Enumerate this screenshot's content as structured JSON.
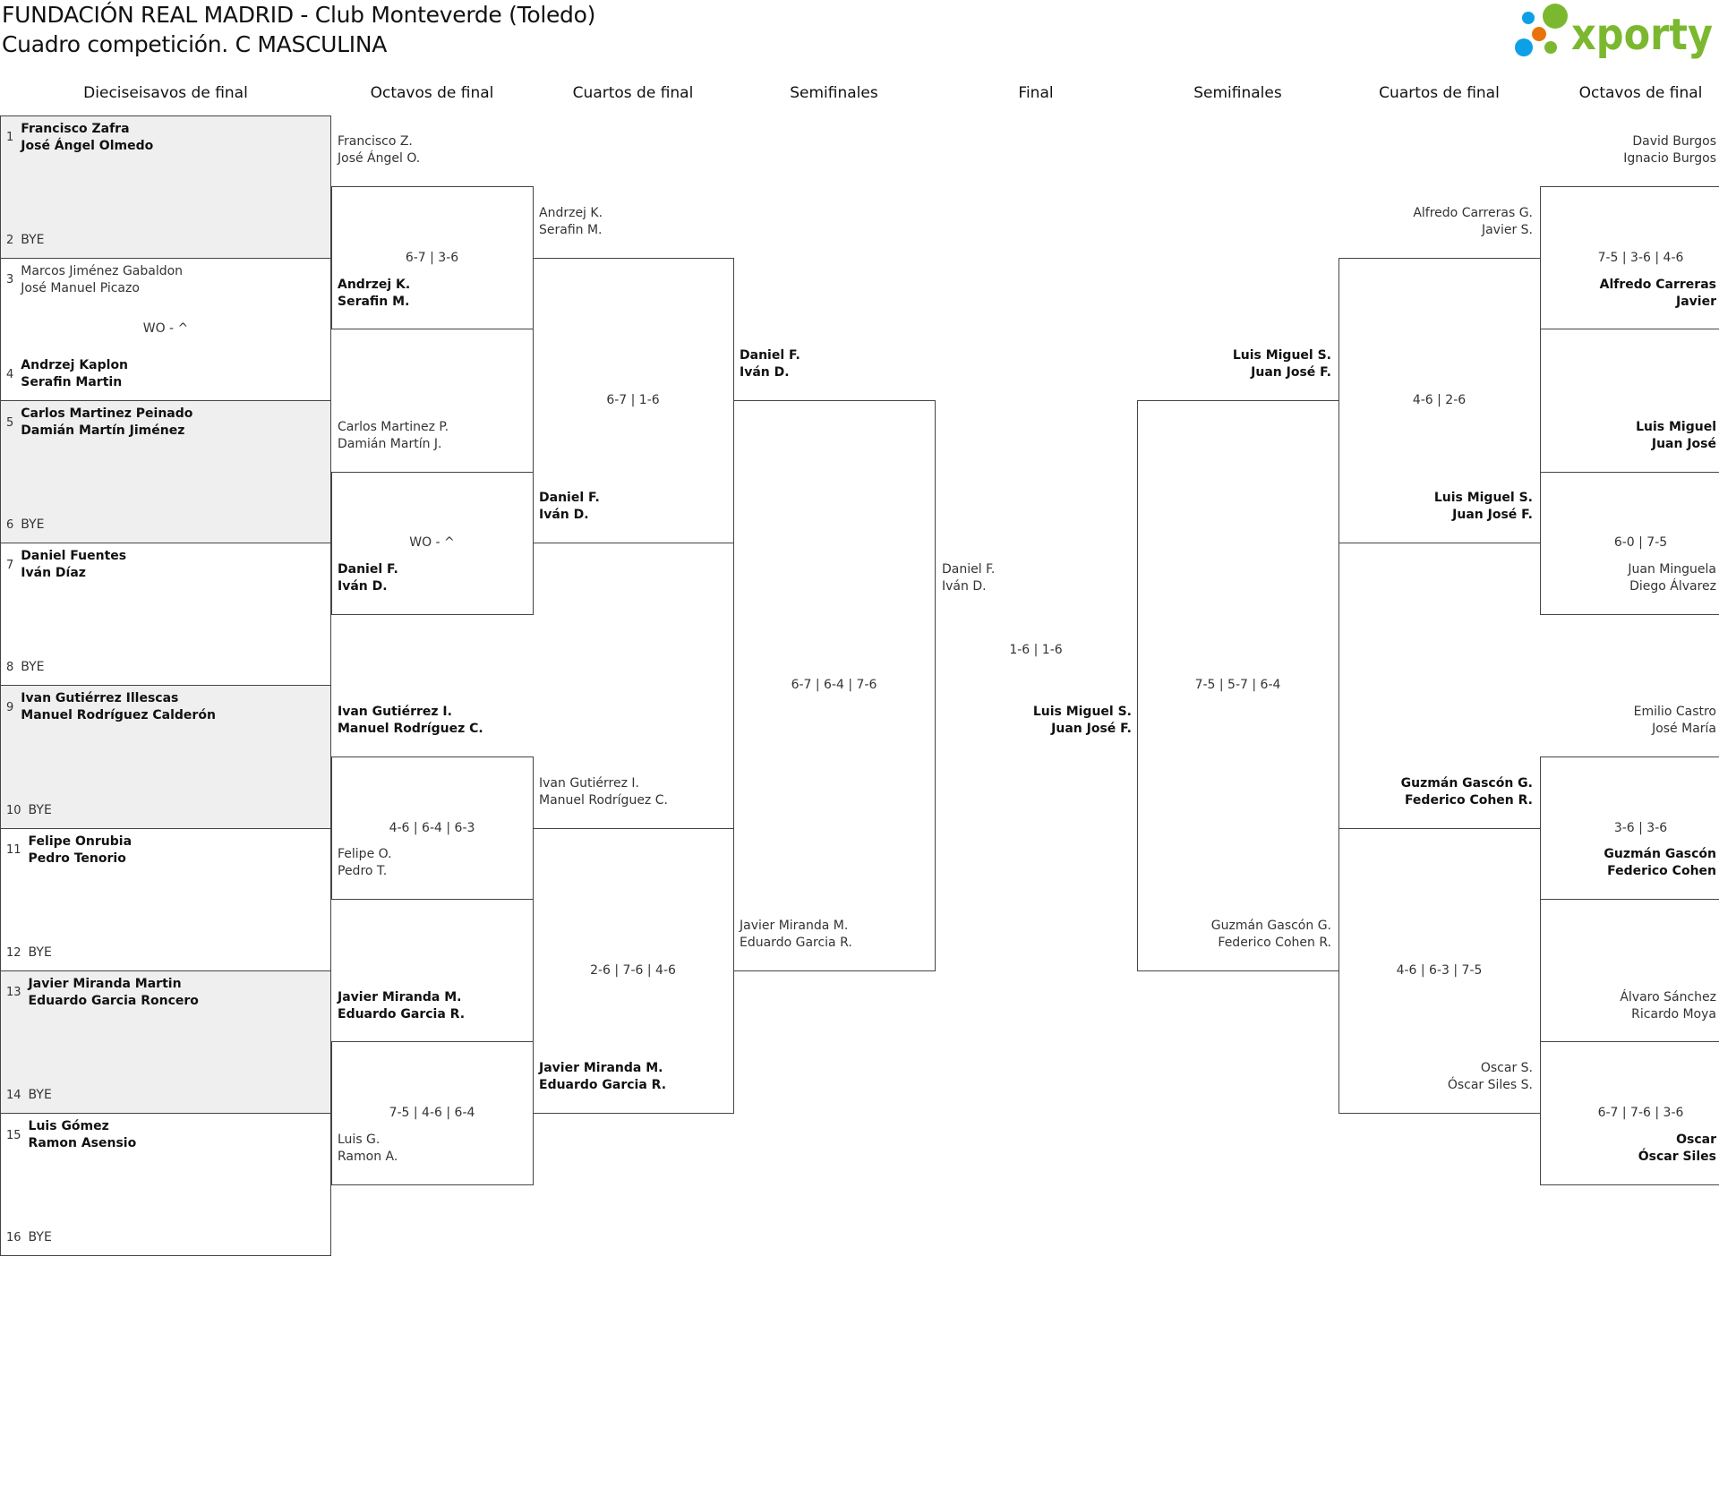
{
  "header": {
    "title_line1": "FUNDACIÓN REAL MADRID - Club Monteverde (Toledo)",
    "title_line2": "Cuadro competición. C MASCULINA",
    "logo_text": "xporty",
    "logo_colors": {
      "green": "#7cb82f",
      "blue": "#0ea0e6",
      "orange": "#e8730c"
    }
  },
  "round_headers": [
    "Dieciseisavos de final",
    "Octavos de final",
    "Cuartos de final",
    "Semifinales",
    "Final",
    "Semifinales",
    "Cuartos de final",
    "Octavos de final"
  ],
  "first_round": [
    {
      "score": "",
      "seeds": [
        {
          "num": "1",
          "lines": [
            "Francisco Zafra",
            "José Ángel Olmedo"
          ],
          "winner": true
        },
        {
          "num": "2",
          "lines": [
            "BYE"
          ],
          "winner": false
        }
      ]
    },
    {
      "score": "WO - ^",
      "seeds": [
        {
          "num": "3",
          "lines": [
            "Marcos Jiménez Gabaldon",
            "José Manuel Picazo"
          ],
          "winner": false
        },
        {
          "num": "4",
          "lines": [
            "Andrzej Kaplon",
            "Serafin Martin"
          ],
          "winner": true
        }
      ]
    },
    {
      "score": "",
      "seeds": [
        {
          "num": "5",
          "lines": [
            "Carlos Martinez Peinado",
            "Damián Martín Jiménez"
          ],
          "winner": true
        },
        {
          "num": "6",
          "lines": [
            "BYE"
          ],
          "winner": false
        }
      ]
    },
    {
      "score": "",
      "seeds": [
        {
          "num": "7",
          "lines": [
            "Daniel Fuentes",
            "Iván Díaz"
          ],
          "winner": true
        },
        {
          "num": "8",
          "lines": [
            "BYE"
          ],
          "winner": false
        }
      ]
    },
    {
      "score": "",
      "seeds": [
        {
          "num": "9",
          "lines": [
            "Ivan Gutiérrez Illescas",
            "Manuel Rodríguez Calderón"
          ],
          "winner": true
        },
        {
          "num": "10",
          "lines": [
            "BYE"
          ],
          "winner": false
        }
      ]
    },
    {
      "score": "",
      "seeds": [
        {
          "num": "11",
          "lines": [
            "Felipe Onrubia",
            "Pedro Tenorio"
          ],
          "winner": true
        },
        {
          "num": "12",
          "lines": [
            "BYE"
          ],
          "winner": false
        }
      ]
    },
    {
      "score": "",
      "seeds": [
        {
          "num": "13",
          "lines": [
            "Javier Miranda Martin",
            "Eduardo Garcia Roncero"
          ],
          "winner": true
        },
        {
          "num": "14",
          "lines": [
            "BYE"
          ],
          "winner": false
        }
      ]
    },
    {
      "score": "",
      "seeds": [
        {
          "num": "15",
          "lines": [
            "Luis Gómez",
            "Ramon Asensio"
          ],
          "winner": true
        },
        {
          "num": "16",
          "lines": [
            "BYE"
          ],
          "winner": false
        }
      ]
    }
  ],
  "left_rounds": [
    {
      "entries": [
        {
          "lines": [
            "Francisco Z.",
            "José Ángel O."
          ],
          "winner": false
        },
        {
          "lines": [
            "Andrzej K.",
            "Serafin M."
          ],
          "winner": true
        },
        {
          "lines": [
            "Carlos Martinez P.",
            "Damián Martín J."
          ],
          "winner": false
        },
        {
          "lines": [
            "Daniel F.",
            "Iván D."
          ],
          "winner": true
        },
        {
          "lines": [
            "Ivan Gutiérrez I.",
            "Manuel Rodríguez C."
          ],
          "winner": true
        },
        {
          "lines": [
            "Felipe O.",
            "Pedro T."
          ],
          "winner": false
        },
        {
          "lines": [
            "Javier Miranda M.",
            "Eduardo Garcia R."
          ],
          "winner": true
        },
        {
          "lines": [
            "Luis G.",
            "Ramon A."
          ],
          "winner": false
        }
      ],
      "scores": [
        "6-7 | 3-6",
        "WO - ^",
        "4-6 | 6-4 | 6-3",
        "7-5 | 4-6 | 6-4"
      ]
    },
    {
      "entries": [
        {
          "lines": [
            "Andrzej K.",
            "Serafin M."
          ],
          "winner": false
        },
        {
          "lines": [
            "Daniel F.",
            "Iván D."
          ],
          "winner": true
        },
        {
          "lines": [
            "Ivan Gutiérrez I.",
            "Manuel Rodríguez C."
          ],
          "winner": false
        },
        {
          "lines": [
            "Javier Miranda M.",
            "Eduardo Garcia R."
          ],
          "winner": true
        }
      ],
      "scores": [
        "6-7 | 1-6",
        "2-6 | 7-6 | 4-6"
      ]
    },
    {
      "entries": [
        {
          "lines": [
            "Daniel F.",
            "Iván D."
          ],
          "winner": true
        },
        {
          "lines": [
            "Javier Miranda M.",
            "Eduardo Garcia R."
          ],
          "winner": false
        }
      ],
      "scores": [
        "6-7 | 6-4 | 7-6"
      ]
    }
  ],
  "final": {
    "entries": [
      {
        "lines": [
          "Daniel F.",
          "Iván D."
        ],
        "winner": false
      },
      {
        "lines": [
          "Luis Miguel S.",
          "Juan José F."
        ],
        "winner": true
      }
    ],
    "score": "1-6 | 1-6"
  },
  "right_rounds": [
    {
      "entries": [
        {
          "lines": [
            "Luis Miguel S.",
            "Juan José F."
          ],
          "winner": true
        },
        {
          "lines": [
            "Guzmán Gascón G.",
            "Federico Cohen R."
          ],
          "winner": false
        }
      ],
      "scores": [
        "7-5 | 5-7 | 6-4"
      ]
    },
    {
      "entries": [
        {
          "lines": [
            "Alfredo Carreras G.",
            "Javier S."
          ],
          "winner": false
        },
        {
          "lines": [
            "Luis Miguel S.",
            "Juan José F."
          ],
          "winner": true
        },
        {
          "lines": [
            "Guzmán Gascón G.",
            "Federico Cohen R."
          ],
          "winner": true
        },
        {
          "lines": [
            "Oscar S.",
            "Óscar Siles S."
          ],
          "winner": false
        }
      ],
      "scores": [
        "4-6 | 2-6",
        "4-6 | 6-3 | 7-5"
      ]
    },
    {
      "entries": [
        {
          "lines": [
            "David Burgos",
            "Ignacio Burgos"
          ],
          "winner": false
        },
        {
          "lines": [
            "Alfredo Carreras",
            "Javier"
          ],
          "winner": true
        },
        {
          "lines": [
            "Luis Miguel",
            "Juan José"
          ],
          "winner": true
        },
        {
          "lines": [
            "Juan Minguela",
            "Diego Álvarez"
          ],
          "winner": false
        },
        {
          "lines": [
            "Emilio Castro",
            "José María"
          ],
          "winner": false
        },
        {
          "lines": [
            "Guzmán Gascón",
            "Federico Cohen"
          ],
          "winner": true
        },
        {
          "lines": [
            "Álvaro Sánchez",
            "Ricardo Moya"
          ],
          "winner": false
        },
        {
          "lines": [
            "Oscar",
            "Óscar Siles"
          ],
          "winner": true
        }
      ],
      "scores": [
        "7-5 | 3-6 | 4-6",
        "6-0 | 7-5",
        "3-6 | 3-6",
        "6-7 | 7-6 | 3-6"
      ]
    }
  ]
}
